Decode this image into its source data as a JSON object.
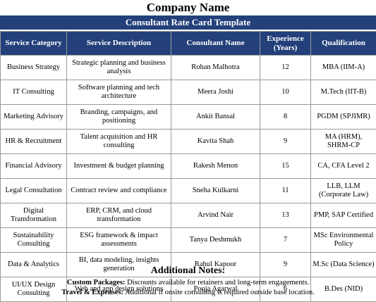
{
  "company_name": "Company Name",
  "sheet_title": "Consultant Rate Card Template",
  "columns": [
    "Service Category",
    "Service Description",
    "Consultant Name",
    "Experience (Years)",
    "Qualification"
  ],
  "rows": [
    {
      "category": "Business Strategy",
      "description": "Strategic planning and business analysis",
      "consultant": "Rohan Malhotra",
      "experience": "12",
      "qualification": "MBA (IIM-A)"
    },
    {
      "category": "IT Consulting",
      "description": "Software planning and tech architecture",
      "consultant": "Meera Joshi",
      "experience": "10",
      "qualification": "M.Tech (IIT-B)"
    },
    {
      "category": "Marketing Advisory",
      "description": "Branding, campaigns, and positioning",
      "consultant": "Ankit Bansal",
      "experience": "8",
      "qualification": "PGDM (SPJIMR)"
    },
    {
      "category": "HR & Recruitment",
      "description": "Talent acquisition and HR consulting",
      "consultant": "Kavita Shah",
      "experience": "9",
      "qualification": "MA (HRM), SHRM-CP"
    },
    {
      "category": "Financial Advisory",
      "description": "Investment & budget planning",
      "consultant": "Rakesh Menon",
      "experience": "15",
      "qualification": "CA, CFA Level 2"
    },
    {
      "category": "Legal Consultation",
      "description": "Contract review and compliance",
      "consultant": "Sneha Kulkarni",
      "experience": "11",
      "qualification": "LLB, LLM (Corporate Law)"
    },
    {
      "category": "Digital Transformation",
      "description": "ERP, CRM, and cloud transformation",
      "consultant": "Arvind Nair",
      "experience": "13",
      "qualification": "PMP, SAP Certified"
    },
    {
      "category": "Sustainability Consulting",
      "description": "ESG framework & impact assessments",
      "consultant": "Tanya Deshmukh",
      "experience": "7",
      "qualification": "MSc Environmental Policy"
    },
    {
      "category": "Data & Analytics",
      "description": "BI, data modeling, insights generation",
      "consultant": "Rahul Kapoor",
      "experience": "9",
      "qualification": "M.Sc (Data Science)"
    },
    {
      "category": "UI/UX Design Consulting",
      "description": "Web and app design solutions",
      "consultant": "Pooja Agarwal",
      "experience": "6",
      "qualification": "B.Des (NID)"
    }
  ],
  "notes": {
    "title": "Additional Notes:",
    "items": [
      {
        "label": "Custom Packages:",
        "text": " Discounts available for retainers and long-term engagements."
      },
      {
        "label": "Travel & Expenses:",
        "text": " Additional if onsite consulting is required outside base location."
      }
    ]
  },
  "colors": {
    "header_bg": "#23407a",
    "header_text": "#ffffff",
    "grid": "#9a9a9a"
  }
}
